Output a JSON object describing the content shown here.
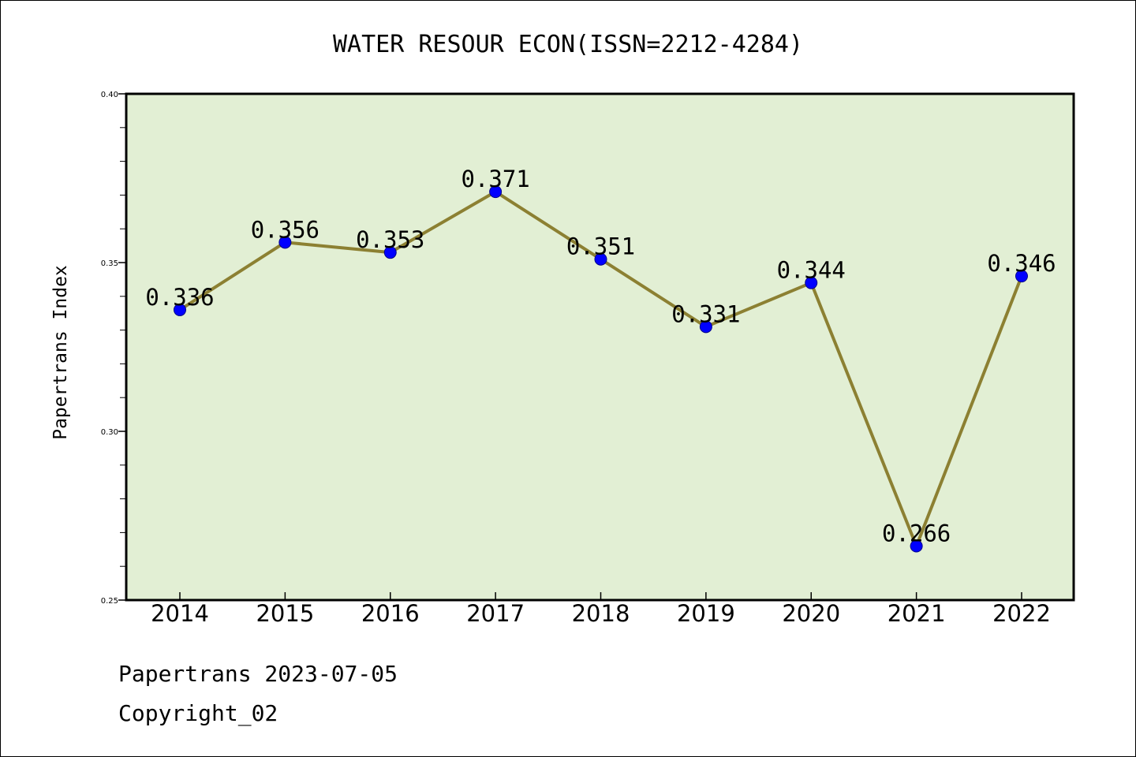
{
  "chart_data": {
    "type": "line",
    "title": "WATER RESOUR ECON(ISSN=2212-4284)",
    "ylabel": "Papertrans Index",
    "xlabel": "",
    "categories": [
      "2014",
      "2015",
      "2016",
      "2017",
      "2018",
      "2019",
      "2020",
      "2021",
      "2022"
    ],
    "values": [
      0.336,
      0.356,
      0.353,
      0.371,
      0.351,
      0.331,
      0.344,
      0.266,
      0.346
    ],
    "data_labels": [
      "0.336",
      "0.356",
      "0.353",
      "0.371",
      "0.351",
      "0.331",
      "0.344",
      "0.266",
      "0.346"
    ],
    "ylim": [
      0.25,
      0.4
    ],
    "yticks": [
      "0.25",
      "0.30",
      "0.35",
      "0.40"
    ],
    "grid": false,
    "legend": "none",
    "colors": {
      "plot_background": "#e2efd4",
      "line": "#8c8032",
      "marker": "#0000ff"
    }
  },
  "footer": {
    "line1": "Papertrans 2023-07-05",
    "line2": "Copyright_02"
  }
}
